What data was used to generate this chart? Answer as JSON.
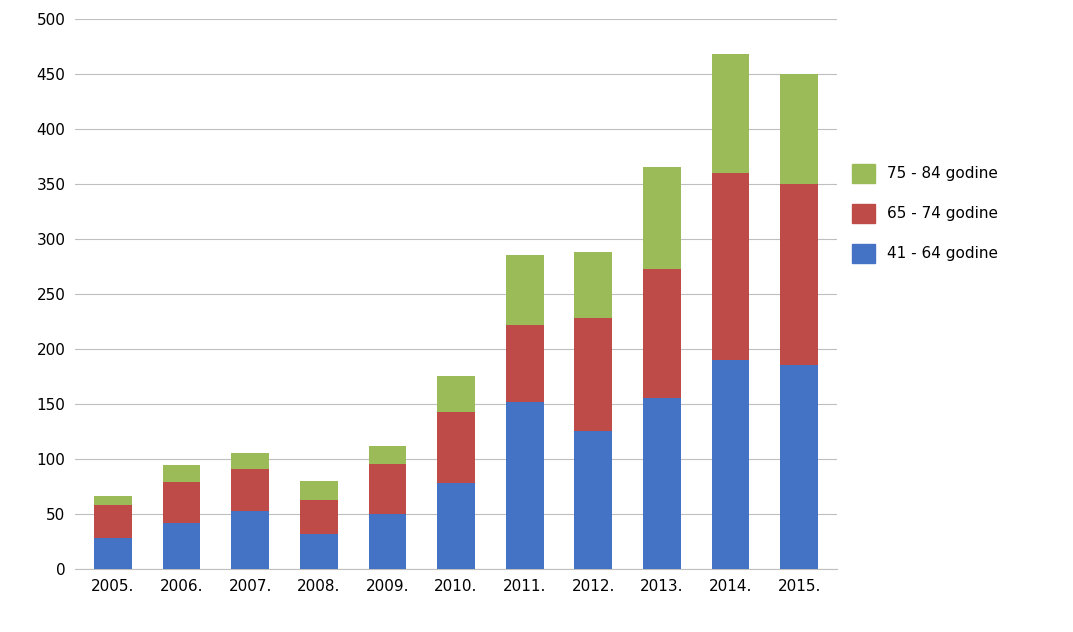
{
  "years": [
    "2005.",
    "2006.",
    "2007.",
    "2008.",
    "2009.",
    "2010.",
    "2011.",
    "2012.",
    "2013.",
    "2014.",
    "2015."
  ],
  "blue": [
    28,
    42,
    53,
    32,
    50,
    78,
    152,
    125,
    155,
    190,
    185
  ],
  "red": [
    30,
    37,
    38,
    31,
    45,
    65,
    70,
    103,
    118,
    170,
    165
  ],
  "green": [
    8,
    15,
    14,
    17,
    17,
    32,
    63,
    60,
    92,
    108,
    100
  ],
  "blue_color": "#4472C4",
  "red_color": "#BE4B48",
  "green_color": "#9BBB59",
  "ylim": [
    0,
    500
  ],
  "yticks": [
    0,
    50,
    100,
    150,
    200,
    250,
    300,
    350,
    400,
    450,
    500
  ],
  "legend_labels": [
    "75 - 84 godine",
    "65 - 74 godine",
    "41 - 64 godine"
  ],
  "bar_width": 0.55,
  "background_color": "#FFFFFF",
  "grid_color": "#BFBFBF",
  "grid_linewidth": 0.8,
  "tick_fontsize": 11,
  "legend_fontsize": 11
}
